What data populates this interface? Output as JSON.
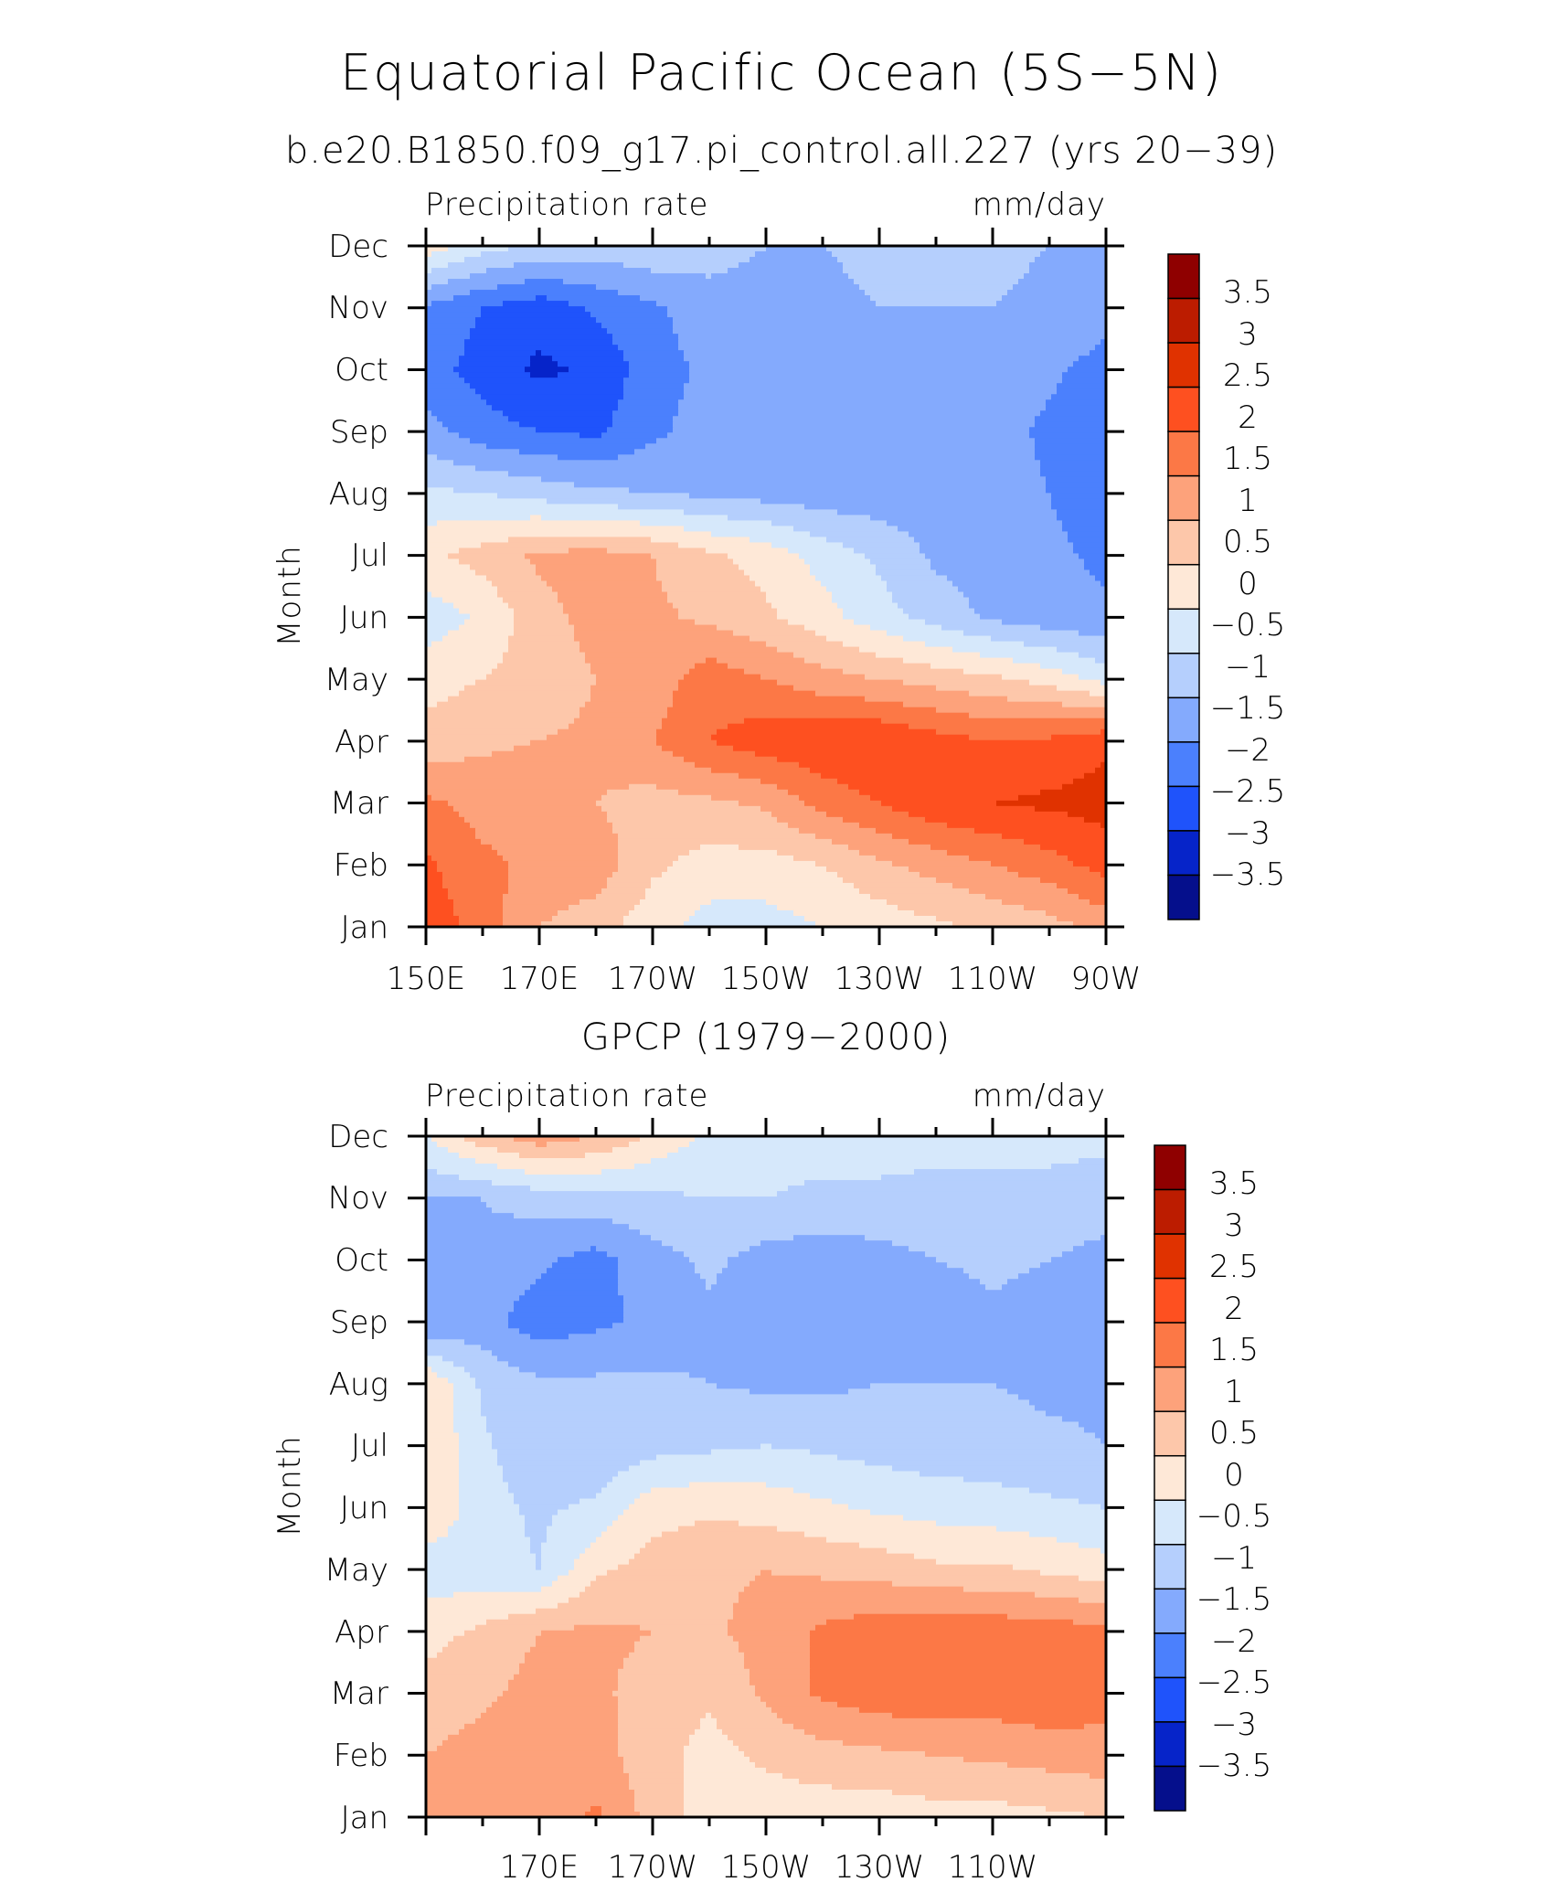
{
  "figure": {
    "title": "Equatorial Pacific Ocean (5S−5N)"
  },
  "levels": [
    "3.5",
    "3",
    "2.5",
    "2",
    "1.5",
    "1",
    "0.5",
    "0",
    "−0.5",
    "−1",
    "−1.5",
    "−2",
    "−2.5",
    "−3",
    "−3.5"
  ],
  "colors": [
    "#8f0000",
    "#bc1c00",
    "#e03200",
    "#fe5020",
    "#fc7846",
    "#fda27b",
    "#fdc7aa",
    "#fee8d7",
    "#d6e8fb",
    "#b5cffd",
    "#84aafd",
    "#4b80fd",
    "#1f53fb",
    "#0624c9",
    "#050f8c"
  ],
  "chart_data": [
    {
      "type": "heatmap",
      "title": "b.e20.B1850.f09_g17.pi_control.all.227 (yrs 20−39)",
      "left_label": "Precipitation rate",
      "right_label": "mm/day",
      "ylabel": "Month",
      "xlabel": "",
      "x_tick_labels": [
        "150E",
        "170E",
        "170W",
        "150W",
        "130W",
        "110W",
        "90W"
      ],
      "y_tick_labels": [
        "Jan",
        "Feb",
        "Mar",
        "Apr",
        "May",
        "Jun",
        "Jul",
        "Aug",
        "Sep",
        "Oct",
        "Nov",
        "Dec"
      ],
      "xlim": [
        150,
        270
      ],
      "ylim": [
        1,
        12
      ],
      "colorbar_levels": [
        -3.5,
        -3,
        -2.5,
        -2,
        -1.5,
        -1,
        -0.5,
        0,
        0.5,
        1,
        1.5,
        2,
        2.5,
        3,
        3.5
      ],
      "grid": false,
      "x": [
        150,
        160,
        170,
        180,
        190,
        200,
        210,
        220,
        230,
        240,
        250,
        260,
        270
      ],
      "y": [
        1,
        2,
        3,
        4,
        5,
        6,
        7,
        8,
        9,
        10,
        11,
        12
      ],
      "z": [
        [
          2.3,
          1.8,
          1.0,
          0.7,
          0.2,
          -0.2,
          -0.2,
          0.0,
          0.2,
          0.4,
          0.6,
          0.8,
          1.2
        ],
        [
          2.1,
          1.6,
          1.4,
          1.3,
          0.6,
          0.3,
          0.3,
          0.5,
          0.9,
          1.2,
          1.5,
          1.8,
          2.2
        ],
        [
          1.6,
          1.3,
          1.4,
          1.0,
          0.8,
          0.9,
          1.1,
          1.7,
          2.0,
          2.4,
          2.5,
          2.6,
          2.7
        ],
        [
          0.7,
          0.9,
          1.0,
          1.1,
          1.5,
          2.0,
          2.3,
          2.4,
          2.5,
          2.2,
          2.0,
          2.1,
          2.4
        ],
        [
          0.3,
          0.5,
          0.7,
          1.0,
          1.2,
          1.8,
          1.5,
          1.2,
          1.0,
          0.8,
          0.6,
          0.3,
          -0.2
        ],
        [
          -0.3,
          0.1,
          0.8,
          1.2,
          1.1,
          0.9,
          0.6,
          0.2,
          -0.3,
          -0.7,
          -1.1,
          -1.3,
          -1.4
        ],
        [
          0.4,
          0.7,
          1.1,
          1.2,
          1.0,
          0.6,
          0.3,
          -0.2,
          -0.6,
          -1.1,
          -1.3,
          -1.4,
          -1.6
        ],
        [
          -0.4,
          -0.5,
          -0.7,
          -0.9,
          -1.0,
          -1.1,
          -1.2,
          -1.3,
          -1.3,
          -1.3,
          -1.3,
          -1.5,
          -1.8
        ],
        [
          -1.3,
          -1.8,
          -2.0,
          -2.1,
          -1.6,
          -1.3,
          -1.3,
          -1.3,
          -1.3,
          -1.3,
          -1.3,
          -1.6,
          -2.0
        ],
        [
          -1.8,
          -2.2,
          -2.6,
          -2.4,
          -1.7,
          -1.4,
          -1.3,
          -1.2,
          -1.2,
          -1.2,
          -1.2,
          -1.4,
          -1.7
        ],
        [
          -1.6,
          -2.0,
          -2.3,
          -1.9,
          -1.6,
          -1.2,
          -1.2,
          -1.1,
          -1.0,
          -1.0,
          -1.0,
          -1.1,
          -1.3
        ],
        [
          0.3,
          -0.3,
          -0.6,
          -0.7,
          -0.6,
          -0.8,
          -1.0,
          -1.0,
          -0.9,
          -0.9,
          -0.9,
          -1.0,
          -1.1
        ]
      ]
    },
    {
      "type": "heatmap",
      "title": "GPCP (1979−2000)",
      "left_label": "Precipitation rate",
      "right_label": "mm/day",
      "ylabel": "Month",
      "xlabel": "",
      "x_tick_labels": [
        "170E",
        "170W",
        "150W",
        "130W",
        "110W"
      ],
      "y_tick_labels": [
        "Jan",
        "Feb",
        "Mar",
        "Apr",
        "May",
        "Jun",
        "Jul",
        "Aug",
        "Sep",
        "Oct",
        "Nov",
        "Dec"
      ],
      "xlim": [
        150,
        270
      ],
      "ylim": [
        1,
        12
      ],
      "colorbar_levels": [
        -3.5,
        -3,
        -2.5,
        -2,
        -1.5,
        -1,
        -0.5,
        0,
        0.5,
        1,
        1.5,
        2,
        2.5,
        3,
        3.5
      ],
      "grid": false,
      "x": [
        150,
        160,
        170,
        180,
        190,
        200,
        210,
        220,
        230,
        240,
        250,
        260,
        270
      ],
      "y": [
        1,
        2,
        3,
        4,
        5,
        6,
        7,
        8,
        9,
        10,
        11,
        12
      ],
      "z": [
        [
          1.0,
          1.1,
          1.2,
          1.6,
          0.8,
          0.2,
          0.2,
          0.2,
          0.2,
          0.3,
          0.3,
          0.4,
          0.5
        ],
        [
          1.0,
          1.2,
          1.3,
          1.2,
          0.7,
          0.3,
          0.6,
          0.8,
          0.9,
          1.0,
          1.1,
          1.2,
          1.3
        ],
        [
          0.7,
          0.9,
          1.2,
          1.1,
          0.8,
          0.6,
          1.1,
          1.6,
          1.8,
          1.9,
          1.8,
          1.9,
          1.7
        ],
        [
          0.3,
          0.6,
          1.0,
          1.1,
          1.0,
          0.9,
          1.2,
          1.6,
          1.8,
          1.9,
          1.8,
          1.8,
          1.6
        ],
        [
          -0.3,
          -0.3,
          -0.5,
          0.4,
          0.7,
          0.9,
          1.0,
          0.9,
          0.8,
          0.6,
          0.6,
          0.4,
          0.2
        ],
        [
          0.5,
          -0.3,
          -0.6,
          -0.4,
          0.3,
          0.4,
          0.3,
          0.1,
          -0.1,
          -0.2,
          -0.3,
          -0.4,
          -0.5
        ],
        [
          0.5,
          -0.4,
          -0.9,
          -0.9,
          -0.7,
          -0.6,
          -0.5,
          -0.6,
          -0.7,
          -0.8,
          -0.8,
          -0.9,
          -1.0
        ],
        [
          0.5,
          -0.6,
          -0.9,
          -0.9,
          -0.9,
          -1.0,
          -1.1,
          -1.1,
          -1.0,
          -1.0,
          -1.0,
          -1.1,
          -1.1
        ],
        [
          -1.5,
          -1.3,
          -1.8,
          -1.6,
          -1.4,
          -1.1,
          -1.3,
          -1.4,
          -1.4,
          -1.3,
          -1.1,
          -1.2,
          -1.3
        ],
        [
          -1.3,
          -1.1,
          -1.4,
          -1.7,
          -1.2,
          -0.9,
          -1.2,
          -1.3,
          -1.2,
          -1.0,
          -0.9,
          -1.0,
          -1.2
        ],
        [
          -1.0,
          -1.0,
          -0.8,
          -0.7,
          -0.6,
          -0.5,
          -0.5,
          -0.6,
          -0.6,
          -0.6,
          -0.6,
          -0.6,
          -0.7
        ],
        [
          0.0,
          0.8,
          1.3,
          1.0,
          0.4,
          -0.1,
          -0.3,
          -0.3,
          -0.3,
          -0.4,
          -0.4,
          -0.4,
          -0.4
        ]
      ]
    }
  ]
}
